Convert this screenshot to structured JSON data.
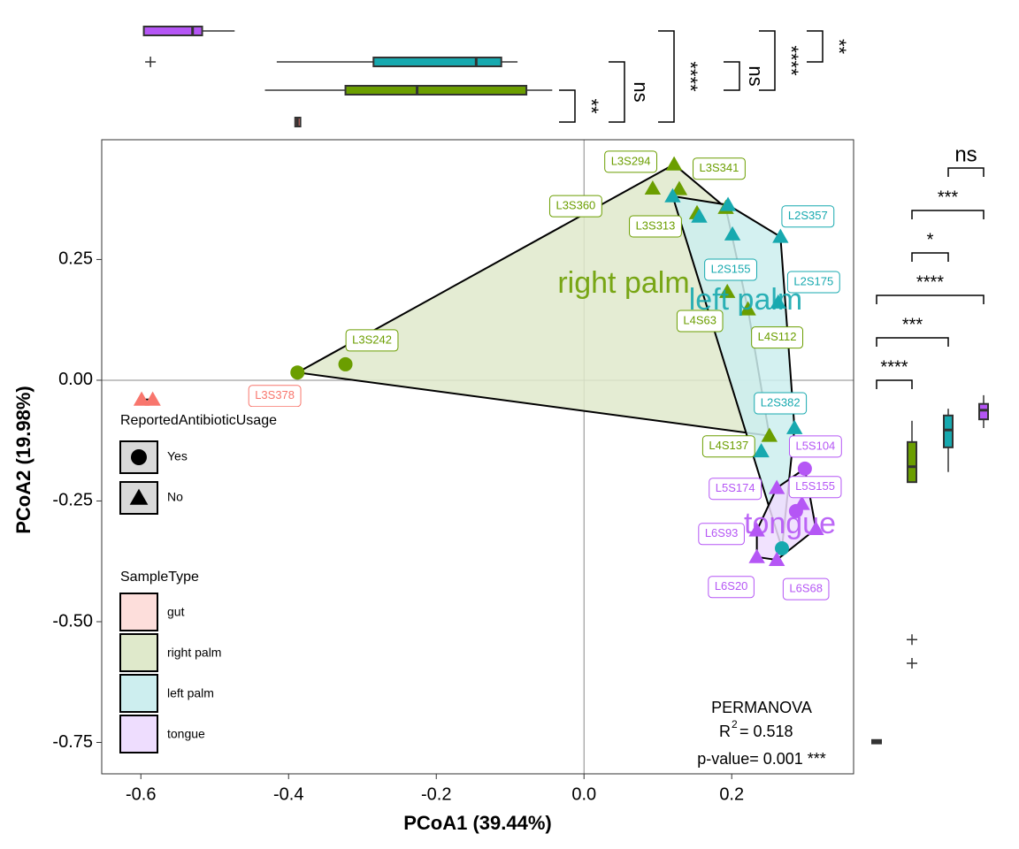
{
  "chart_data": {
    "type": "scatter",
    "x_label": "PCoA1 (39.44%)",
    "y_label": "PCoA2 (19.98%)",
    "xlim": [
      -0.653,
      0.365
    ],
    "ylim": [
      -0.815,
      0.498
    ],
    "xticks": [
      -0.6,
      -0.4,
      -0.2,
      {
        "value": 0,
        "label": "0.0"
      },
      0.2
    ],
    "yticks": [
      0.25,
      {
        "value": 0,
        "label": "0.00"
      },
      -0.25,
      {
        "value": -0.5,
        "label": "-0.50"
      },
      -0.75
    ],
    "legend_shape_title": "ReportedAntibioticUsage",
    "legend_shape_entries": [
      "Yes",
      "No"
    ],
    "legend_fill_title": "SampleType",
    "series": [
      {
        "name": "gut",
        "color": "#F8766D",
        "fill": "#FDDEDB",
        "x": [
          -0.599,
          -0.584
        ],
        "y": [
          -0.04,
          -0.04
        ],
        "usage": [
          "No",
          "No"
        ],
        "labels": [
          null,
          "L3S378"
        ]
      },
      {
        "name": "right palm",
        "color": "#6B9E00",
        "fill": "#DFE9CB",
        "x": [
          -0.388,
          -0.323,
          0.122,
          0.129,
          0.093,
          0.153,
          0.192,
          0.194,
          0.222,
          0.251
        ],
        "y": [
          0.016,
          0.033,
          0.447,
          0.396,
          0.397,
          0.346,
          0.357,
          0.183,
          0.147,
          -0.115
        ],
        "usage": [
          "Yes",
          "Yes",
          "No",
          "No",
          "No",
          "No",
          "No",
          "No",
          "No",
          "No"
        ],
        "labels": [
          null,
          "L3S242",
          "L3S294",
          "L3S341",
          "L3S360",
          "L3S313",
          null,
          "L4S63",
          "L4S112",
          "L4S137"
        ]
      },
      {
        "name": "left palm",
        "color": "#17A9AF",
        "fill": "#CDEEEF",
        "x": [
          0.12,
          0.156,
          0.195,
          0.266,
          0.201,
          0.263,
          0.285,
          0.268,
          0.24
        ],
        "y": [
          0.381,
          0.339,
          0.363,
          0.297,
          0.302,
          0.161,
          -0.099,
          -0.348,
          -0.147
        ],
        "usage": [
          "No",
          "No",
          "No",
          "No",
          "No",
          "No",
          "No",
          "Yes",
          "No"
        ],
        "labels": [
          null,
          null,
          null,
          "L2S357",
          "L2S155",
          "L2S175",
          "L2S382",
          null,
          null
        ]
      },
      {
        "name": "tongue",
        "color": "#B556F5",
        "fill": "#EEDDFE",
        "x": [
          0.299,
          0.295,
          0.261,
          0.234,
          0.234,
          0.261,
          0.287,
          0.314
        ],
        "y": [
          -0.183,
          -0.256,
          -0.223,
          -0.311,
          -0.366,
          -0.372,
          -0.271,
          -0.308
        ],
        "usage": [
          "Yes",
          "No",
          "No",
          "No",
          "No",
          "No",
          "Yes",
          "No"
        ],
        "labels": [
          "L5S104",
          "L5S155",
          "L5S174",
          "L6S93",
          "L6S20",
          "L6S68",
          null,
          null
        ]
      }
    ],
    "top_boxes": [
      {
        "color": "#B556F5",
        "min": -0.596,
        "q1": -0.596,
        "median": -0.53,
        "q3": -0.517,
        "max": -0.473,
        "outliers": []
      },
      {
        "color": "#17A9AF",
        "min": -0.416,
        "q1": -0.285,
        "median": -0.146,
        "q3": -0.112,
        "max": -0.09,
        "outliers": [
          -0.587
        ]
      },
      {
        "color": "#6B9E00",
        "min": -0.432,
        "q1": -0.323,
        "median": -0.226,
        "q3": -0.078,
        "max": -0.043,
        "outliers": []
      },
      {
        "color": "#F8766D",
        "min": -0.391,
        "q1": -0.391,
        "median": -0.388,
        "q3": -0.384,
        "max": -0.384,
        "outliers": []
      }
    ],
    "right_boxes": [
      {
        "color": "#F8766D",
        "min": -0.752,
        "q1": -0.752,
        "median": -0.749,
        "q3": -0.745,
        "max": -0.745,
        "outliers": []
      },
      {
        "color": "#6B9E00",
        "min": -0.211,
        "q1": -0.211,
        "median": -0.179,
        "q3": -0.128,
        "max": -0.084,
        "outliers": [
          -0.537,
          -0.586
        ]
      },
      {
        "color": "#17A9AF",
        "min": -0.19,
        "q1": -0.139,
        "median": -0.103,
        "q3": -0.073,
        "max": -0.059,
        "outliers": []
      },
      {
        "color": "#B556F5",
        "min": -0.099,
        "q1": -0.081,
        "median": -0.062,
        "q3": -0.049,
        "max": -0.031,
        "outliers": []
      }
    ],
    "top_tests": [
      {
        "groups": [
          2,
          3
        ],
        "label": "**"
      },
      {
        "groups": [
          1,
          3
        ],
        "label": "ns"
      },
      {
        "groups": [
          0,
          3
        ],
        "label": "****"
      },
      {
        "groups": [
          1,
          2
        ],
        "label": "ns"
      },
      {
        "groups": [
          0,
          2
        ],
        "label": "****"
      },
      {
        "groups": [
          0,
          1
        ],
        "label": "**"
      }
    ],
    "right_tests": [
      {
        "groups": [
          0,
          1
        ],
        "label": "****"
      },
      {
        "groups": [
          0,
          2
        ],
        "label": "***"
      },
      {
        "groups": [
          0,
          3
        ],
        "label": "****"
      },
      {
        "groups": [
          1,
          2
        ],
        "label": "*"
      },
      {
        "groups": [
          1,
          3
        ],
        "label": "***"
      },
      {
        "groups": [
          2,
          3
        ],
        "label": "ns"
      }
    ],
    "annotation": {
      "title": "PERMANOVA",
      "r2_symbol": "R",
      "r2_power": "2",
      "r2_text": "= 0.518",
      "p_text": "p-value= 0.001 ***"
    }
  }
}
